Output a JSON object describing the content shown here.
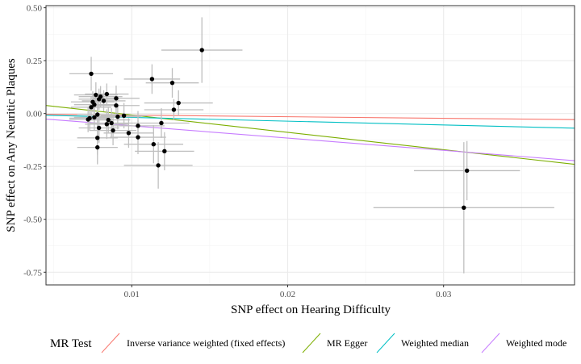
{
  "chart_data": {
    "type": "scatter",
    "xlabel": "SNP effect on Hearing Difficulty",
    "ylabel": "SNP effect on Any Neuritic Plaques",
    "xlim": [
      0.0045,
      0.0384
    ],
    "ylim": [
      -0.81,
      0.51
    ],
    "x_ticks": [
      0.01,
      0.02,
      0.03
    ],
    "x_tick_labels": [
      "0.01",
      "0.02",
      "0.03"
    ],
    "y_ticks": [
      0.5,
      0.25,
      0.0,
      -0.25,
      -0.5,
      -0.75
    ],
    "y_tick_labels": [
      "0.50",
      "0.25",
      "0.00",
      "-0.25",
      "-0.50",
      "-0.75"
    ],
    "grid": true,
    "legend_title": "MR Test",
    "legend_position": "bottom",
    "series": [
      {
        "name": "Inverse variance weighted (fixed effects)",
        "slope": -0.75,
        "intercept": 0,
        "color": "#F8766D"
      },
      {
        "name": "MR Egger",
        "slope": -8.2,
        "intercept": 0.075,
        "color": "#7CAE00"
      },
      {
        "name": "Weighted median",
        "slope": -1.8,
        "intercept": 0,
        "color": "#00BFC4"
      },
      {
        "name": "Weighted mode",
        "slope": -5.8,
        "intercept": 0,
        "color": "#C77CFF"
      }
    ],
    "points": [
      {
        "x": 0.0145,
        "y": 0.3,
        "xerr": 0.0026,
        "yerr": 0.155
      },
      {
        "x": 0.0074,
        "y": 0.188,
        "xerr": 0.0014,
        "yerr": 0.08
      },
      {
        "x": 0.0113,
        "y": 0.163,
        "xerr": 0.0018,
        "yerr": 0.07
      },
      {
        "x": 0.0126,
        "y": 0.145,
        "xerr": 0.0017,
        "yerr": 0.07
      },
      {
        "x": 0.0084,
        "y": 0.092,
        "xerr": 0.0014,
        "yerr": 0.05
      },
      {
        "x": 0.0077,
        "y": 0.088,
        "xerr": 0.0014,
        "yerr": 0.06
      },
      {
        "x": 0.008,
        "y": 0.08,
        "xerr": 0.0014,
        "yerr": 0.05
      },
      {
        "x": 0.009,
        "y": 0.072,
        "xerr": 0.0015,
        "yerr": 0.06
      },
      {
        "x": 0.0079,
        "y": 0.068,
        "xerr": 0.0013,
        "yerr": 0.05
      },
      {
        "x": 0.0082,
        "y": 0.06,
        "xerr": 0.0014,
        "yerr": 0.05
      },
      {
        "x": 0.0075,
        "y": 0.055,
        "xerr": 0.0014,
        "yerr": 0.05
      },
      {
        "x": 0.013,
        "y": 0.05,
        "xerr": 0.0022,
        "yerr": 0.06
      },
      {
        "x": 0.0076,
        "y": 0.042,
        "xerr": 0.0013,
        "yerr": 0.05
      },
      {
        "x": 0.009,
        "y": 0.038,
        "xerr": 0.0015,
        "yerr": 0.06
      },
      {
        "x": 0.0074,
        "y": 0.03,
        "xerr": 0.0013,
        "yerr": 0.05
      },
      {
        "x": 0.0127,
        "y": 0.018,
        "xerr": 0.0019,
        "yerr": 0.05
      },
      {
        "x": 0.0078,
        "y": -0.005,
        "xerr": 0.0013,
        "yerr": 0.06
      },
      {
        "x": 0.0095,
        "y": -0.01,
        "xerr": 0.0015,
        "yerr": 0.06
      },
      {
        "x": 0.0091,
        "y": -0.015,
        "xerr": 0.0015,
        "yerr": 0.06
      },
      {
        "x": 0.0076,
        "y": -0.018,
        "xerr": 0.0013,
        "yerr": 0.06
      },
      {
        "x": 0.0073,
        "y": -0.022,
        "xerr": 0.0013,
        "yerr": 0.06
      },
      {
        "x": 0.0072,
        "y": -0.028,
        "xerr": 0.0012,
        "yerr": 0.06
      },
      {
        "x": 0.0085,
        "y": -0.03,
        "xerr": 0.0014,
        "yerr": 0.06
      },
      {
        "x": 0.0087,
        "y": -0.045,
        "xerr": 0.0014,
        "yerr": 0.07
      },
      {
        "x": 0.0119,
        "y": -0.045,
        "xerr": 0.0018,
        "yerr": 0.07
      },
      {
        "x": 0.0084,
        "y": -0.05,
        "xerr": 0.0014,
        "yerr": 0.07
      },
      {
        "x": 0.0104,
        "y": -0.058,
        "xerr": 0.0017,
        "yerr": 0.07
      },
      {
        "x": 0.0079,
        "y": -0.068,
        "xerr": 0.0013,
        "yerr": 0.07
      },
      {
        "x": 0.0088,
        "y": -0.08,
        "xerr": 0.0015,
        "yerr": 0.07
      },
      {
        "x": 0.0098,
        "y": -0.092,
        "xerr": 0.0016,
        "yerr": 0.07
      },
      {
        "x": 0.0104,
        "y": -0.112,
        "xerr": 0.0018,
        "yerr": 0.08
      },
      {
        "x": 0.0078,
        "y": -0.115,
        "xerr": 0.0013,
        "yerr": 0.08
      },
      {
        "x": 0.0114,
        "y": -0.145,
        "xerr": 0.0019,
        "yerr": 0.09
      },
      {
        "x": 0.0078,
        "y": -0.16,
        "xerr": 0.0013,
        "yerr": 0.08
      },
      {
        "x": 0.0121,
        "y": -0.178,
        "xerr": 0.0019,
        "yerr": 0.09
      },
      {
        "x": 0.0117,
        "y": -0.245,
        "xerr": 0.0022,
        "yerr": 0.11
      },
      {
        "x": 0.0315,
        "y": -0.27,
        "xerr": 0.0034,
        "yerr": 0.14
      },
      {
        "x": 0.0313,
        "y": -0.445,
        "xerr": 0.0058,
        "yerr": 0.31
      }
    ]
  }
}
